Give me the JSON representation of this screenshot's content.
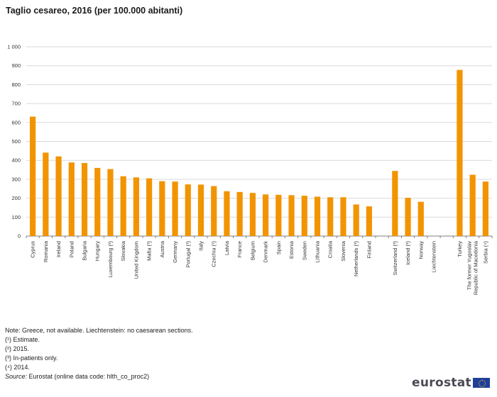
{
  "title": "Taglio cesareo, 2016 (per 100.000 abitanti)",
  "notes": {
    "note": "Note: Greece, not available. Liechtenstein: no caesarean sections.",
    "footnotes": [
      "(¹) Estimate.",
      "(²) 2015.",
      "(³) In-patients only.",
      "(⁴) 2014."
    ],
    "source_label": "Source:",
    "source_text": " Eurostat (online data code: hlth_co_proc2)"
  },
  "logo": {
    "text": "eurostat",
    "flag_color": "#1f3f9a"
  },
  "colors": {
    "bar": "#f29400",
    "grid": "#d9d9d9",
    "axis": "#7f7f7f"
  },
  "chart_data": {
    "type": "bar",
    "title": "Taglio cesareo, 2016 (per 100.000 abitanti)",
    "xlabel": "",
    "ylabel": "",
    "ylim": [
      0,
      1000
    ],
    "yticks": [
      0,
      100,
      200,
      300,
      400,
      500,
      600,
      700,
      800,
      900,
      1000
    ],
    "ytick_labels": [
      "0",
      "100",
      "200",
      "300",
      "400",
      "500",
      "600",
      "700",
      "800",
      "900",
      "1 000"
    ],
    "grid": true,
    "legend": "none",
    "groups": [
      {
        "categories": [
          "Cyprus",
          "Romania",
          "Ireland",
          "Poland",
          "Bulgaria",
          "Hungary",
          "Luxembourg (²)",
          "Slovakia",
          "United Kingdom",
          "Malta (³)",
          "Austria",
          "Germany",
          "Portugal (³)",
          "Italy",
          "Czechia (¹)",
          "Latvia",
          "France",
          "Belgium",
          "Denmark",
          "Spain",
          "Estonia",
          "Sweden",
          "Lithuania",
          "Croatia",
          "Slovenia",
          "Netherlands (³)",
          "Finland"
        ],
        "values": [
          631,
          441,
          421,
          389,
          386,
          360,
          354,
          316,
          310,
          305,
          290,
          288,
          273,
          272,
          264,
          237,
          233,
          228,
          220,
          218,
          216,
          213,
          208,
          205,
          205,
          167,
          157
        ]
      },
      {
        "categories": [
          "Switzerland (³)",
          "Iceland (²)",
          "Norway",
          "Liechtenstein"
        ],
        "values": [
          344,
          202,
          181,
          0
        ]
      },
      {
        "categories": [
          "Turkey",
          "The former Yugoslav Republic of Macedonia",
          "Serbia (⁴)"
        ],
        "values": [
          878,
          324,
          288
        ]
      }
    ]
  }
}
